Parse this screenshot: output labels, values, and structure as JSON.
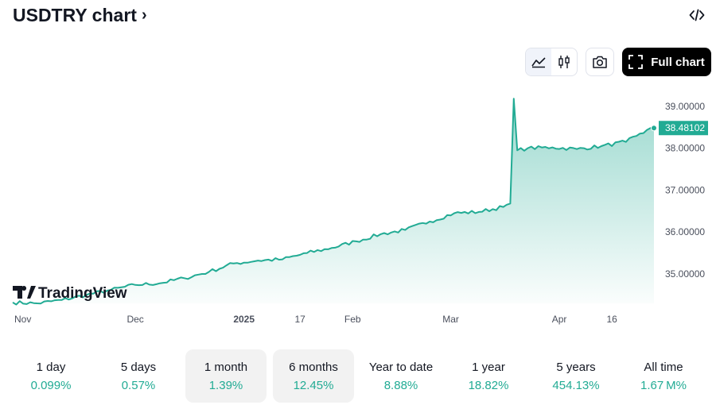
{
  "header": {
    "title": "USDTRY chart",
    "title_chevron": "›",
    "embed_icon": "code-icon"
  },
  "toolbar": {
    "full_chart_label": "Full chart"
  },
  "watermark": {
    "text": "TradingView"
  },
  "colors": {
    "line": "#22ab94",
    "price_tag_bg": "#22ab94",
    "text": "#131722",
    "axis_text": "#4a4f5c",
    "positive": "#22ab94"
  },
  "chart_data": {
    "type": "area",
    "symbol": "USDTRY",
    "last_price": "38.48102",
    "ylim": [
      34.3,
      39.3
    ],
    "y_ticks": [
      "39.00000",
      "38.00000",
      "37.00000",
      "36.00000",
      "35.00000"
    ],
    "x_ticks": [
      "Nov",
      "Dec",
      "2025",
      "17",
      "Feb",
      "Mar",
      "Apr",
      "16"
    ],
    "x_domain": [
      "2024-10-27",
      "2025-04-28"
    ],
    "points": [
      [
        "2024-10-27",
        34.32
      ],
      [
        "2024-11-03",
        34.3
      ],
      [
        "2024-11-10",
        34.38
      ],
      [
        "2024-11-17",
        34.5
      ],
      [
        "2024-11-24",
        34.62
      ],
      [
        "2024-12-01",
        34.74
      ],
      [
        "2024-12-08",
        34.78
      ],
      [
        "2024-12-15",
        34.9
      ],
      [
        "2024-12-22",
        35.05
      ],
      [
        "2024-12-29",
        35.25
      ],
      [
        "2025-01-05",
        35.32
      ],
      [
        "2025-01-12",
        35.35
      ],
      [
        "2025-01-19",
        35.5
      ],
      [
        "2025-01-26",
        35.62
      ],
      [
        "2025-02-02",
        35.78
      ],
      [
        "2025-02-09",
        35.95
      ],
      [
        "2025-02-16",
        36.05
      ],
      [
        "2025-02-23",
        36.25
      ],
      [
        "2025-03-02",
        36.45
      ],
      [
        "2025-03-09",
        36.48
      ],
      [
        "2025-03-16",
        36.6
      ],
      [
        "2025-03-18",
        36.68
      ],
      [
        "2025-03-19",
        39.18
      ],
      [
        "2025-03-20",
        37.95
      ],
      [
        "2025-03-23",
        38.0
      ],
      [
        "2025-03-30",
        38.02
      ],
      [
        "2025-04-06",
        37.98
      ],
      [
        "2025-04-13",
        38.05
      ],
      [
        "2025-04-20",
        38.15
      ],
      [
        "2025-04-24",
        38.35
      ],
      [
        "2025-04-28",
        38.48
      ]
    ]
  },
  "ranges": [
    {
      "label": "1 day",
      "value": "0.099%",
      "active": false
    },
    {
      "label": "5 days",
      "value": "0.57%",
      "active": false
    },
    {
      "label": "1 month",
      "value": "1.39%",
      "active": true
    },
    {
      "label": "6 months",
      "value": "12.45%",
      "active": true
    },
    {
      "label": "Year to date",
      "value": "8.88%",
      "active": false
    },
    {
      "label": "1 year",
      "value": "18.82%",
      "active": false
    },
    {
      "label": "5 years",
      "value": "454.13%",
      "active": false
    },
    {
      "label": "All time",
      "value": "1.67 M%",
      "active": false
    }
  ]
}
